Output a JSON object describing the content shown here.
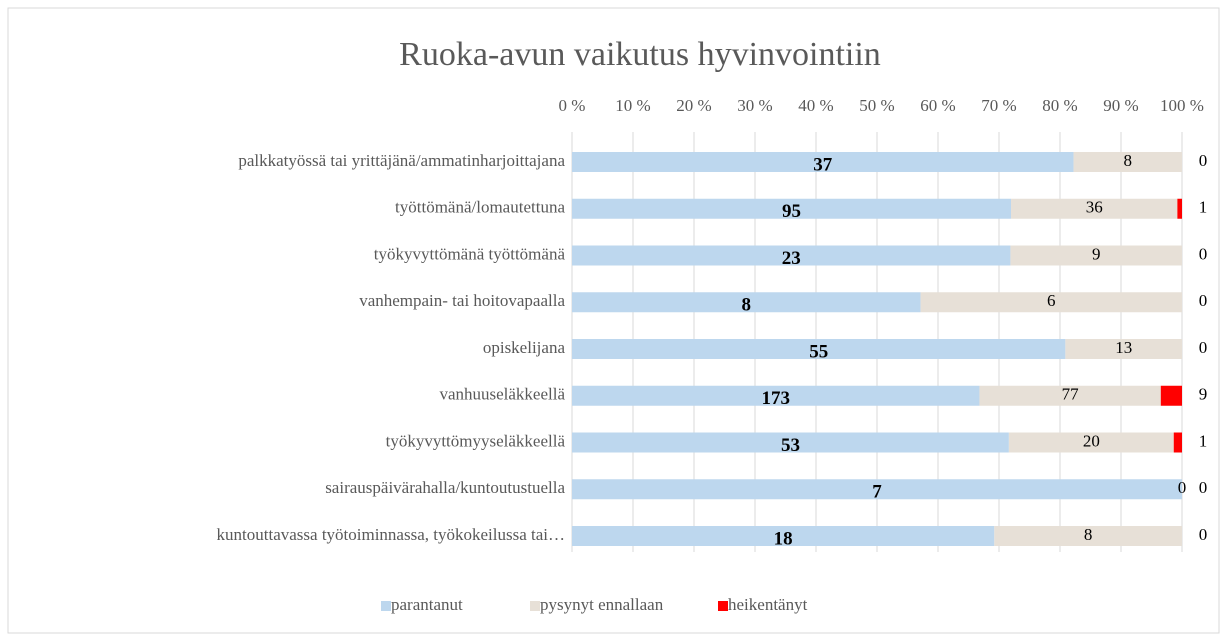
{
  "chart_data": {
    "type": "bar",
    "orientation": "horizontal",
    "stacking": "percent",
    "title": "Ruoka-avun vaikutus hyvinvointiin",
    "categories": [
      "palkkatyössä tai yrittäjänä/ammatinharjoittajana",
      "työttömänä/lomautettuna",
      "työkyvyttömänä työttömänä",
      "vanhempain- tai hoitovapaalla",
      "opiskelijana",
      "vanhuuseläkkeellä",
      "työkyvyttömyyseläkkeellä",
      "sairauspäivärahalla/kuntoutustuella",
      "kuntouttavassa työtoiminnassa, työkokeilussa tai…"
    ],
    "series": [
      {
        "name": "parantanut",
        "color": "#bdd7ee",
        "values": [
          37,
          95,
          23,
          8,
          55,
          173,
          53,
          7,
          18
        ]
      },
      {
        "name": "pysynyt ennallaan",
        "color": "#e7e0d7",
        "values": [
          8,
          36,
          9,
          6,
          13,
          77,
          20,
          0,
          8
        ]
      },
      {
        "name": "heikentänyt",
        "color": "#ff0000",
        "values": [
          0,
          1,
          0,
          0,
          0,
          9,
          1,
          0,
          0
        ]
      }
    ],
    "xlim": [
      0,
      100
    ],
    "xticks": [
      {
        "value": 0,
        "label": "0 %"
      },
      {
        "value": 10,
        "label": "10 %"
      },
      {
        "value": 20,
        "label": "20 %"
      },
      {
        "value": 30,
        "label": "30 %"
      },
      {
        "value": 40,
        "label": "40 %"
      },
      {
        "value": 50,
        "label": "50 %"
      },
      {
        "value": 60,
        "label": "60 %"
      },
      {
        "value": 70,
        "label": "70 %"
      },
      {
        "value": 80,
        "label": "80 %"
      },
      {
        "value": 90,
        "label": "90 %"
      },
      {
        "value": 100,
        "label": "100 %"
      }
    ],
    "grid": true,
    "legend": "bottom"
  }
}
